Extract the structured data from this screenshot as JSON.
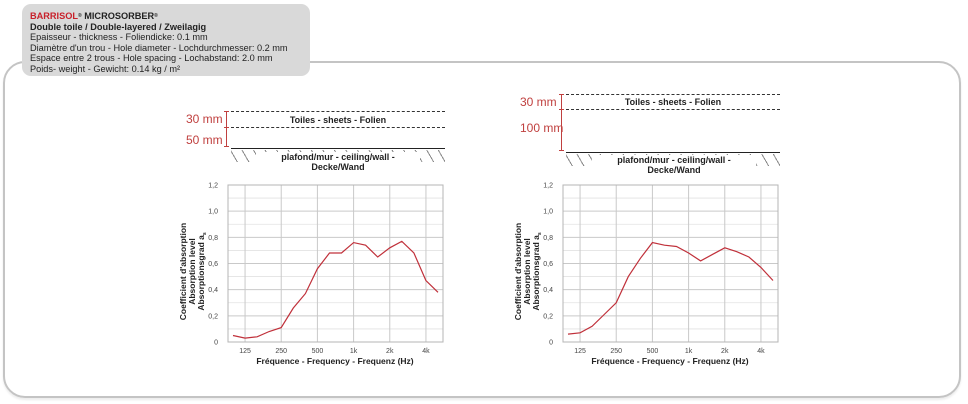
{
  "info_box": {
    "brand": "BARRISOL",
    "reg": "®",
    "product": " MICROSORBER",
    "product_reg": "®",
    "subtitle": "Double toile / Double-layered / Zweilagig",
    "lines": [
      "Epaisseur - thickness - Foliendicke: 0.1 mm",
      "Diamètre d'un trou - Hole diameter - Lochdurchmesser: 0.2 mm",
      "Espace entre 2 trous - Hole spacing - Lochabstand: 2.0 mm",
      "Poids- weight - Gewicht: 0.14 kg / m²"
    ]
  },
  "diagrams": [
    {
      "dim_top": "30 mm",
      "dim_bottom": "50 mm",
      "layer_label": "Toiles - sheets - Folien",
      "wall_label": "plafond/mur - ceiling/wall - Decke/Wand"
    },
    {
      "dim_top": "30 mm",
      "dim_bottom": "100 mm",
      "layer_label": "Toiles - sheets - Folien",
      "wall_label": "plafond/mur - ceiling/wall - Decke/Wand"
    }
  ],
  "colors": {
    "brand_red": "#c8202a",
    "dimension_red": "#c0403f",
    "curve": "#c0303a",
    "grid": "#cfcfcf",
    "info_bg": "#d9d9d9"
  },
  "chart_data": [
    {
      "type": "line",
      "title": "",
      "xlabel": "Fréquence  - Frequency - Frequenz (Hz)",
      "ylabel": [
        "Coefficient d'absorption",
        "Absorption level",
        "Absorptionsgrad  a"
      ],
      "ylabel_subscript": "s",
      "x": [
        100,
        125,
        160,
        200,
        250,
        315,
        400,
        500,
        630,
        800,
        1000,
        1250,
        1600,
        2000,
        2500,
        3150,
        4000,
        5000
      ],
      "x_tick_labels": [
        "125",
        "250",
        "500",
        "1k",
        "2k",
        "4k"
      ],
      "x_tick_values": [
        125,
        250,
        500,
        1000,
        2000,
        4000
      ],
      "y_tick_labels": [
        "0",
        "0,2",
        "0,4",
        "0,6",
        "0,8",
        "1,0",
        "1,2"
      ],
      "ylim": [
        0,
        1.2
      ],
      "grid": true,
      "series": [
        {
          "name": "30 mm + 50 mm",
          "values": [
            0.05,
            0.03,
            0.04,
            0.08,
            0.11,
            0.26,
            0.37,
            0.56,
            0.68,
            0.68,
            0.76,
            0.74,
            0.65,
            0.72,
            0.77,
            0.68,
            0.47,
            0.38
          ]
        }
      ]
    },
    {
      "type": "line",
      "title": "",
      "xlabel": "Fréquence  - Frequency - Frequenz (Hz)",
      "ylabel": [
        "Coefficient d'absorption",
        "Absorption level",
        "Absorptionsgrad  a"
      ],
      "ylabel_subscript": "s",
      "x": [
        100,
        125,
        160,
        200,
        250,
        315,
        400,
        500,
        630,
        800,
        1000,
        1250,
        1600,
        2000,
        2500,
        3150,
        4000,
        5000
      ],
      "x_tick_labels": [
        "125",
        "250",
        "500",
        "1k",
        "2k",
        "4k"
      ],
      "x_tick_values": [
        125,
        250,
        500,
        1000,
        2000,
        4000
      ],
      "y_tick_labels": [
        "0",
        "0,2",
        "0,4",
        "0,6",
        "0,8",
        "1,0",
        "1,2"
      ],
      "ylim": [
        0,
        1.2
      ],
      "grid": true,
      "series": [
        {
          "name": "30 mm + 100 mm",
          "values": [
            0.06,
            0.07,
            0.12,
            0.21,
            0.3,
            0.5,
            0.64,
            0.76,
            0.74,
            0.73,
            0.68,
            0.62,
            0.67,
            0.72,
            0.69,
            0.65,
            0.57,
            0.47
          ]
        }
      ]
    }
  ]
}
